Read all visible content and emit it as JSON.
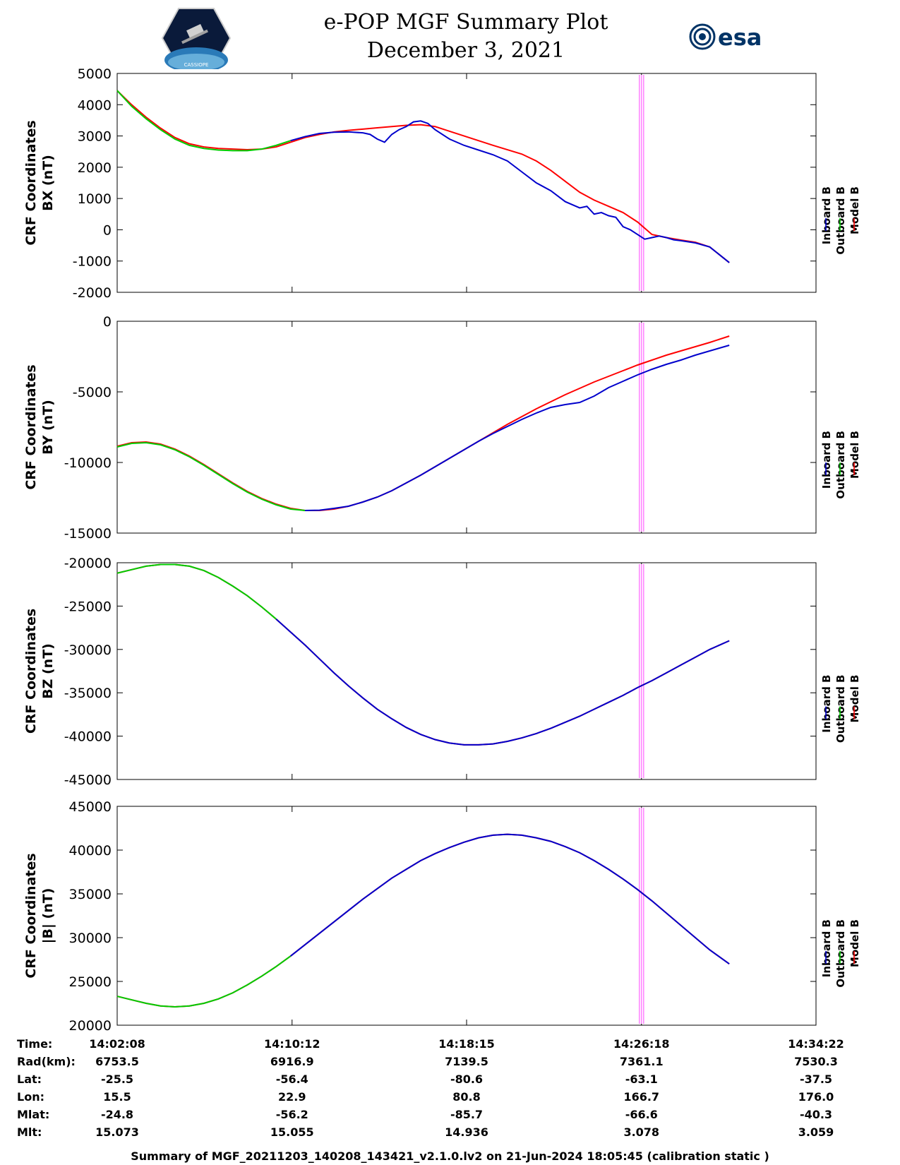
{
  "header": {
    "title_line1": "e-POP MGF Summary Plot",
    "title_line2": "December 3, 2021",
    "left_logo_text": "CASSIOPE",
    "right_logo_text": "esa"
  },
  "colors": {
    "inboard": "#0000cc",
    "outboard": "#00cc00",
    "model": "#ff0000",
    "marker": "#ff88ff"
  },
  "chart_data": [
    {
      "type": "line",
      "ylabel": [
        "CRF Coordinates",
        "BX (nT)"
      ],
      "ylim": [
        -2000,
        5000
      ],
      "yticks": [
        5000,
        4000,
        3000,
        2000,
        1000,
        0,
        -1000,
        -2000
      ],
      "legend": [
        "Inboard B",
        "Outboard B",
        "Model B"
      ],
      "marker_x": 1451,
      "series": [
        {
          "name": "Model B",
          "color": "model",
          "x": [
            0,
            40,
            80,
            120,
            160,
            200,
            240,
            280,
            320,
            360,
            400,
            440,
            480,
            520,
            560,
            600,
            640,
            680,
            720,
            760,
            800,
            840,
            880,
            920,
            960,
            1000,
            1040,
            1080,
            1120,
            1160,
            1200,
            1240,
            1280,
            1320,
            1360,
            1400,
            1440,
            1480,
            1520,
            1560,
            1600,
            1640,
            1694
          ],
          "y": [
            4450,
            4000,
            3600,
            3250,
            2950,
            2750,
            2650,
            2600,
            2580,
            2560,
            2580,
            2650,
            2800,
            2950,
            3050,
            3130,
            3180,
            3220,
            3260,
            3300,
            3340,
            3360,
            3300,
            3150,
            3000,
            2850,
            2700,
            2560,
            2420,
            2200,
            1900,
            1550,
            1200,
            950,
            750,
            550,
            250,
            -150,
            -250,
            -330,
            -400,
            -550,
            -1050
          ]
        },
        {
          "name": "Outboard B",
          "color": "outboard",
          "x": [
            0,
            40,
            80,
            120,
            160,
            200,
            240,
            280,
            320,
            360,
            400,
            440,
            480
          ],
          "y": [
            4450,
            3950,
            3550,
            3200,
            2900,
            2700,
            2600,
            2550,
            2530,
            2530,
            2580,
            2700,
            2850
          ]
        },
        {
          "name": "Inboard B",
          "color": "inboard",
          "x": [
            480,
            520,
            560,
            600,
            640,
            680,
            700,
            720,
            740,
            760,
            780,
            800,
            820,
            840,
            860,
            880,
            920,
            960,
            1000,
            1040,
            1080,
            1120,
            1160,
            1200,
            1240,
            1280,
            1300,
            1320,
            1340,
            1360,
            1380,
            1400,
            1420,
            1440,
            1460,
            1480,
            1500,
            1520,
            1540,
            1560,
            1600,
            1640,
            1694
          ],
          "y": [
            2850,
            2980,
            3080,
            3120,
            3130,
            3100,
            3050,
            2900,
            2800,
            3050,
            3200,
            3300,
            3450,
            3480,
            3400,
            3200,
            2900,
            2700,
            2550,
            2400,
            2200,
            1850,
            1500,
            1250,
            900,
            700,
            750,
            500,
            550,
            450,
            400,
            100,
            0,
            -150,
            -300,
            -250,
            -200,
            -250,
            -320,
            -350,
            -420,
            -550,
            -1050
          ]
        }
      ]
    },
    {
      "type": "line",
      "ylabel": [
        "CRF Coordinates",
        "BY (nT)"
      ],
      "ylim": [
        -15000,
        0
      ],
      "yticks": [
        0,
        -5000,
        -10000,
        -15000
      ],
      "legend": [
        "Inboard B",
        "Outboard B",
        "Model B"
      ],
      "marker_x": 1451,
      "series": [
        {
          "name": "Model B",
          "color": "model",
          "x": [
            0,
            40,
            80,
            120,
            160,
            200,
            240,
            280,
            320,
            360,
            400,
            440,
            480,
            520,
            560,
            600,
            640,
            680,
            720,
            760,
            800,
            840,
            880,
            920,
            960,
            1000,
            1040,
            1080,
            1120,
            1160,
            1200,
            1240,
            1280,
            1320,
            1360,
            1400,
            1440,
            1480,
            1520,
            1560,
            1600,
            1640,
            1694
          ],
          "y": [
            -8850,
            -8600,
            -8550,
            -8700,
            -9050,
            -9550,
            -10150,
            -10800,
            -11450,
            -12050,
            -12550,
            -12950,
            -13250,
            -13400,
            -13400,
            -13300,
            -13100,
            -12800,
            -12450,
            -12000,
            -11450,
            -10900,
            -10300,
            -9700,
            -9100,
            -8500,
            -7900,
            -7300,
            -6750,
            -6200,
            -5700,
            -5200,
            -4750,
            -4300,
            -3900,
            -3500,
            -3100,
            -2750,
            -2400,
            -2100,
            -1800,
            -1500,
            -1050
          ]
        },
        {
          "name": "Outboard B",
          "color": "outboard",
          "x": [
            0,
            40,
            80,
            120,
            160,
            200,
            240,
            280,
            320,
            360,
            400,
            440,
            480,
            520
          ],
          "y": [
            -8900,
            -8650,
            -8600,
            -8750,
            -9100,
            -9600,
            -10200,
            -10850,
            -11500,
            -12100,
            -12600,
            -13000,
            -13300,
            -13400
          ]
        },
        {
          "name": "Inboard B",
          "color": "inboard",
          "x": [
            520,
            560,
            600,
            640,
            680,
            720,
            760,
            800,
            840,
            880,
            920,
            960,
            1000,
            1040,
            1080,
            1120,
            1160,
            1200,
            1240,
            1280,
            1320,
            1360,
            1400,
            1440,
            1480,
            1520,
            1560,
            1600,
            1640,
            1694
          ],
          "y": [
            -13400,
            -13380,
            -13250,
            -13100,
            -12800,
            -12450,
            -12000,
            -11450,
            -10900,
            -10300,
            -9700,
            -9100,
            -8500,
            -7950,
            -7450,
            -6950,
            -6500,
            -6100,
            -5900,
            -5750,
            -5300,
            -4700,
            -4250,
            -3800,
            -3400,
            -3050,
            -2750,
            -2400,
            -2100,
            -1700
          ]
        }
      ]
    },
    {
      "type": "line",
      "ylabel": [
        "CRF Coordinates",
        "BZ (nT)"
      ],
      "ylim": [
        -45000,
        -20000
      ],
      "yticks": [
        -20000,
        -25000,
        -30000,
        -35000,
        -40000,
        -45000
      ],
      "legend": [
        "Inboard B",
        "Outboard B",
        "Model B"
      ],
      "marker_x": 1451,
      "series": [
        {
          "name": "Model B",
          "color": "model",
          "x": [
            0,
            40,
            80,
            120,
            160,
            200,
            240,
            280,
            320,
            360,
            400,
            440,
            480,
            520,
            560,
            600,
            640,
            680,
            720,
            760,
            800,
            840,
            880,
            920,
            960,
            1000,
            1040,
            1080,
            1120,
            1160,
            1200,
            1240,
            1280,
            1320,
            1360,
            1400,
            1440,
            1480,
            1520,
            1560,
            1600,
            1640,
            1694
          ],
          "y": [
            -21200,
            -20800,
            -20400,
            -20200,
            -20200,
            -20400,
            -20900,
            -21700,
            -22700,
            -23800,
            -25100,
            -26500,
            -28000,
            -29500,
            -31100,
            -32700,
            -34200,
            -35600,
            -36900,
            -38000,
            -39000,
            -39800,
            -40400,
            -40800,
            -41000,
            -41000,
            -40900,
            -40600,
            -40200,
            -39700,
            -39100,
            -38400,
            -37700,
            -36900,
            -36100,
            -35300,
            -34400,
            -33600,
            -32700,
            -31800,
            -30900,
            -30000,
            -29000
          ]
        },
        {
          "name": "Outboard B",
          "color": "outboard",
          "x": [
            0,
            40,
            80,
            120,
            160,
            200,
            240,
            280,
            320,
            360,
            400,
            440
          ],
          "y": [
            -21200,
            -20800,
            -20400,
            -20200,
            -20200,
            -20400,
            -20900,
            -21700,
            -22700,
            -23800,
            -25100,
            -26500
          ]
        },
        {
          "name": "Inboard B",
          "color": "inboard",
          "x": [
            440,
            480,
            520,
            560,
            600,
            640,
            680,
            720,
            760,
            800,
            840,
            880,
            920,
            960,
            1000,
            1040,
            1080,
            1120,
            1160,
            1200,
            1240,
            1280,
            1320,
            1360,
            1400,
            1440,
            1480,
            1520,
            1560,
            1600,
            1640,
            1694
          ],
          "y": [
            -26500,
            -28000,
            -29500,
            -31100,
            -32700,
            -34200,
            -35600,
            -36900,
            -38000,
            -39000,
            -39800,
            -40400,
            -40800,
            -41000,
            -41000,
            -40900,
            -40600,
            -40200,
            -39700,
            -39100,
            -38400,
            -37700,
            -36900,
            -36100,
            -35300,
            -34400,
            -33600,
            -32700,
            -31800,
            -30900,
            -30000,
            -29000
          ]
        }
      ]
    },
    {
      "type": "line",
      "ylabel": [
        "CRF Coordinates",
        "|B| (nT)"
      ],
      "ylim": [
        20000,
        45000
      ],
      "yticks": [
        45000,
        40000,
        35000,
        30000,
        25000,
        20000
      ],
      "legend": [
        "Inboard B",
        "Outboard B",
        "Model B"
      ],
      "marker_x": 1451,
      "series": [
        {
          "name": "Model B",
          "color": "model",
          "x": [
            0,
            40,
            80,
            120,
            160,
            200,
            240,
            280,
            320,
            360,
            400,
            440,
            480,
            520,
            560,
            600,
            640,
            680,
            720,
            760,
            800,
            840,
            880,
            920,
            960,
            1000,
            1040,
            1080,
            1120,
            1160,
            1200,
            1240,
            1280,
            1320,
            1360,
            1400,
            1440,
            1480,
            1520,
            1560,
            1600,
            1640,
            1694
          ],
          "y": [
            23300,
            22900,
            22500,
            22200,
            22100,
            22200,
            22500,
            23000,
            23700,
            24600,
            25600,
            26700,
            27900,
            29200,
            30500,
            31800,
            33100,
            34400,
            35600,
            36800,
            37800,
            38800,
            39600,
            40300,
            40900,
            41400,
            41700,
            41800,
            41700,
            41400,
            41000,
            40400,
            39700,
            38800,
            37800,
            36700,
            35500,
            34200,
            32800,
            31400,
            30000,
            28600,
            27000
          ]
        },
        {
          "name": "Outboard B",
          "color": "outboard",
          "x": [
            0,
            40,
            80,
            120,
            160,
            200,
            240,
            280,
            320,
            360,
            400,
            440,
            480
          ],
          "y": [
            23300,
            22900,
            22500,
            22200,
            22100,
            22200,
            22500,
            23000,
            23700,
            24600,
            25600,
            26700,
            27900
          ]
        },
        {
          "name": "Inboard B",
          "color": "inboard",
          "x": [
            480,
            520,
            560,
            600,
            640,
            680,
            720,
            760,
            800,
            840,
            880,
            920,
            960,
            1000,
            1040,
            1080,
            1120,
            1160,
            1200,
            1240,
            1280,
            1320,
            1360,
            1400,
            1440,
            1480,
            1520,
            1560,
            1600,
            1640,
            1694
          ],
          "y": [
            27900,
            29200,
            30500,
            31800,
            33100,
            34400,
            35600,
            36800,
            37800,
            38800,
            39600,
            40300,
            40900,
            41400,
            41700,
            41800,
            41700,
            41400,
            41000,
            40400,
            39700,
            38800,
            37800,
            36700,
            35500,
            34200,
            32800,
            31400,
            30000,
            28600,
            27000
          ]
        }
      ]
    }
  ],
  "x_axis": {
    "range_seconds": [
      0,
      1934
    ],
    "tick_seconds": [
      0,
      484,
      967,
      1451,
      1934
    ]
  },
  "orbit_table": {
    "rows": [
      {
        "label": "Time:",
        "values": [
          "14:02:08",
          "14:10:12",
          "14:18:15",
          "14:26:18",
          "14:34:22"
        ]
      },
      {
        "label": "Rad(km):",
        "values": [
          "6753.5",
          "6916.9",
          "7139.5",
          "7361.1",
          "7530.3"
        ]
      },
      {
        "label": "Lat:",
        "values": [
          "-25.5",
          "-56.4",
          "-80.6",
          "-63.1",
          "-37.5"
        ]
      },
      {
        "label": "Lon:",
        "values": [
          "15.5",
          "22.9",
          "80.8",
          "166.7",
          "176.0"
        ]
      },
      {
        "label": "Mlat:",
        "values": [
          "-24.8",
          "-56.2",
          "-85.7",
          "-66.6",
          "-40.3"
        ]
      },
      {
        "label": "Mlt:",
        "values": [
          "15.073",
          "15.055",
          "14.936",
          "3.078",
          "3.059"
        ]
      }
    ]
  },
  "footer": "Summary of MGF_20211203_140208_143421_v2.1.0.lv2 on 21-Jun-2024 18:05:45 (calibration static )"
}
